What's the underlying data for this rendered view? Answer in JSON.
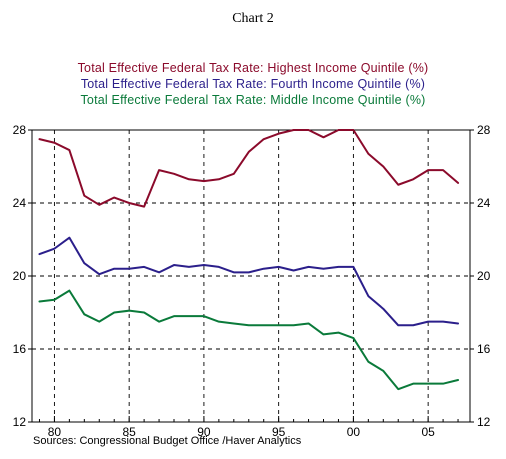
{
  "chart_data": {
    "type": "line",
    "title": "Chart 2",
    "x": [
      1979,
      1980,
      1981,
      1982,
      1983,
      1984,
      1985,
      1986,
      1987,
      1988,
      1989,
      1990,
      1991,
      1992,
      1993,
      1994,
      1995,
      1996,
      1997,
      1998,
      1999,
      2000,
      2001,
      2002,
      2003,
      2004,
      2005,
      2006,
      2007
    ],
    "xlim": [
      1978.5,
      2007.8
    ],
    "x_ticks": [
      1980,
      1985,
      1990,
      1995,
      2000,
      2005
    ],
    "x_tick_labels": [
      "80",
      "85",
      "90",
      "95",
      "00",
      "05"
    ],
    "ylim": [
      12,
      28
    ],
    "y_ticks": [
      12,
      16,
      20,
      24,
      28
    ],
    "y_tick_labels": [
      "12",
      "16",
      "20",
      "24",
      "28"
    ],
    "grid": true,
    "legend_position": "top",
    "series": [
      {
        "name": "Total Effective Federal Tax Rate: Highest Income Quintile (%)",
        "color": "#8b0a2b",
        "values": [
          27.5,
          27.3,
          26.9,
          24.4,
          23.9,
          24.3,
          24.0,
          23.8,
          25.8,
          25.6,
          25.3,
          25.2,
          25.3,
          25.6,
          26.8,
          27.5,
          27.8,
          28.0,
          28.0,
          27.6,
          28.0,
          28.0,
          26.7,
          26.0,
          25.0,
          25.3,
          25.8,
          25.8,
          25.1
        ]
      },
      {
        "name": "Total Effective Federal Tax Rate: Fourth Income Quintile (%)",
        "color": "#2b1f8b",
        "values": [
          21.2,
          21.5,
          22.1,
          20.7,
          20.1,
          20.4,
          20.4,
          20.5,
          20.2,
          20.6,
          20.5,
          20.6,
          20.5,
          20.2,
          20.2,
          20.4,
          20.5,
          20.3,
          20.5,
          20.4,
          20.5,
          20.5,
          18.9,
          18.2,
          17.3,
          17.3,
          17.5,
          17.5,
          17.4
        ]
      },
      {
        "name": "Total Effective Federal Tax Rate: Middle Income Quintile (%)",
        "color": "#0a7a3a",
        "values": [
          18.6,
          18.7,
          19.2,
          17.9,
          17.5,
          18.0,
          18.1,
          18.0,
          17.5,
          17.8,
          17.8,
          17.8,
          17.5,
          17.4,
          17.3,
          17.3,
          17.3,
          17.3,
          17.4,
          16.8,
          16.9,
          16.6,
          15.3,
          14.8,
          13.8,
          14.1,
          14.1,
          14.1,
          14.3
        ]
      }
    ],
    "source": "Sources:  Congressional Budget Office /Haver Analytics"
  }
}
